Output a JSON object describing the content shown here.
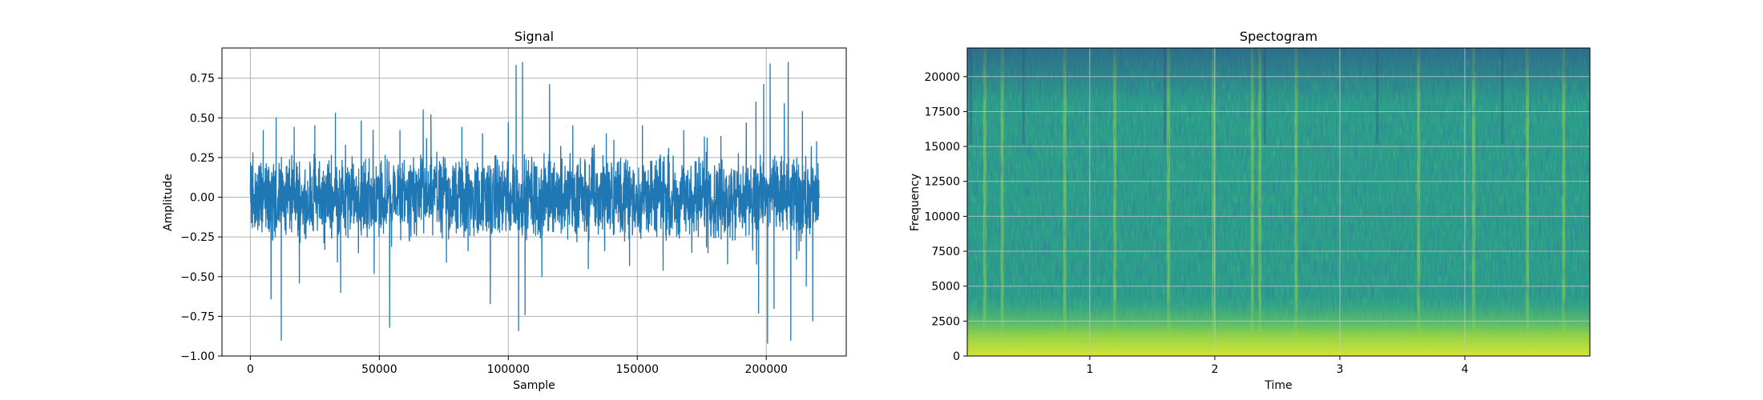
{
  "chart_data": [
    {
      "type": "line",
      "title": "Signal",
      "xlabel": "Sample",
      "ylabel": "Amplitude",
      "xlim": [
        -11000,
        231000
      ],
      "ylim": [
        -1.0,
        0.94
      ],
      "grid": true,
      "line_color": "#1f77b4",
      "x_ticks": [
        0,
        50000,
        100000,
        150000,
        200000
      ],
      "x_tick_labels": [
        "0",
        "50000",
        "100000",
        "150000",
        "200000"
      ],
      "y_ticks": [
        -1.0,
        -0.75,
        -0.5,
        -0.25,
        0.0,
        0.25,
        0.5,
        0.75
      ],
      "y_tick_labels": [
        "−1.00",
        "−0.75",
        "−0.50",
        "−0.25",
        "0.00",
        "0.25",
        "0.50",
        "0.75"
      ],
      "n_samples": 220500,
      "notable_peaks": [
        {
          "x": 1000,
          "y": 0.28
        },
        {
          "x": 5000,
          "y": 0.42
        },
        {
          "x": 8000,
          "y": -0.64
        },
        {
          "x": 10000,
          "y": 0.5
        },
        {
          "x": 12000,
          "y": -0.9
        },
        {
          "x": 17000,
          "y": 0.44
        },
        {
          "x": 19000,
          "y": -0.54
        },
        {
          "x": 25000,
          "y": 0.45
        },
        {
          "x": 33000,
          "y": 0.53
        },
        {
          "x": 35000,
          "y": -0.6
        },
        {
          "x": 43000,
          "y": 0.48
        },
        {
          "x": 48000,
          "y": -0.48
        },
        {
          "x": 54000,
          "y": -0.82
        },
        {
          "x": 58000,
          "y": 0.42
        },
        {
          "x": 67000,
          "y": 0.55
        },
        {
          "x": 70000,
          "y": 0.52
        },
        {
          "x": 76000,
          "y": -0.41
        },
        {
          "x": 82000,
          "y": 0.44
        },
        {
          "x": 90000,
          "y": 0.4
        },
        {
          "x": 93000,
          "y": -0.67
        },
        {
          "x": 100000,
          "y": 0.47
        },
        {
          "x": 103000,
          "y": 0.83
        },
        {
          "x": 104000,
          "y": -0.84
        },
        {
          "x": 105500,
          "y": 0.85
        },
        {
          "x": 106500,
          "y": -0.74
        },
        {
          "x": 113000,
          "y": -0.5
        },
        {
          "x": 116000,
          "y": 0.71
        },
        {
          "x": 125000,
          "y": 0.45
        },
        {
          "x": 131000,
          "y": -0.45
        },
        {
          "x": 138000,
          "y": 0.4
        },
        {
          "x": 147000,
          "y": -0.43
        },
        {
          "x": 152000,
          "y": 0.45
        },
        {
          "x": 160000,
          "y": -0.46
        },
        {
          "x": 168000,
          "y": 0.42
        },
        {
          "x": 176000,
          "y": 0.38
        },
        {
          "x": 185000,
          "y": -0.42
        },
        {
          "x": 196000,
          "y": 0.6
        },
        {
          "x": 197000,
          "y": -0.73
        },
        {
          "x": 199000,
          "y": 0.71
        },
        {
          "x": 200500,
          "y": -0.92
        },
        {
          "x": 201500,
          "y": 0.84
        },
        {
          "x": 203000,
          "y": -0.7
        },
        {
          "x": 207000,
          "y": 0.59
        },
        {
          "x": 208500,
          "y": 0.85
        },
        {
          "x": 209500,
          "y": -0.9
        },
        {
          "x": 214000,
          "y": 0.54
        },
        {
          "x": 215500,
          "y": -0.56
        },
        {
          "x": 218000,
          "y": -0.78
        },
        {
          "x": 219500,
          "y": 0.35
        }
      ]
    },
    {
      "type": "heatmap",
      "title": "Spectogram",
      "xlabel": "Time",
      "ylabel": "Frequency",
      "xlim": [
        0.02,
        5.0
      ],
      "ylim": [
        0,
        22050
      ],
      "grid": true,
      "colormap": "viridis",
      "x_ticks": [
        1,
        2,
        3,
        4
      ],
      "x_tick_labels": [
        "1",
        "2",
        "3",
        "4"
      ],
      "y_ticks": [
        0,
        2500,
        5000,
        7500,
        10000,
        12500,
        15000,
        17500,
        20000
      ],
      "y_tick_labels": [
        "0",
        "2500",
        "5000",
        "7500",
        "10000",
        "12500",
        "15000",
        "17500",
        "20000"
      ],
      "bright_time_bands": [
        0.16,
        0.3,
        0.8,
        1.2,
        1.63,
        1.99,
        2.3,
        2.36,
        2.65,
        3.63,
        4.07,
        4.5,
        4.79
      ],
      "dark_time_bands": [
        0.05,
        0.47,
        1.6,
        2.4,
        3.3,
        4.3
      ]
    }
  ]
}
